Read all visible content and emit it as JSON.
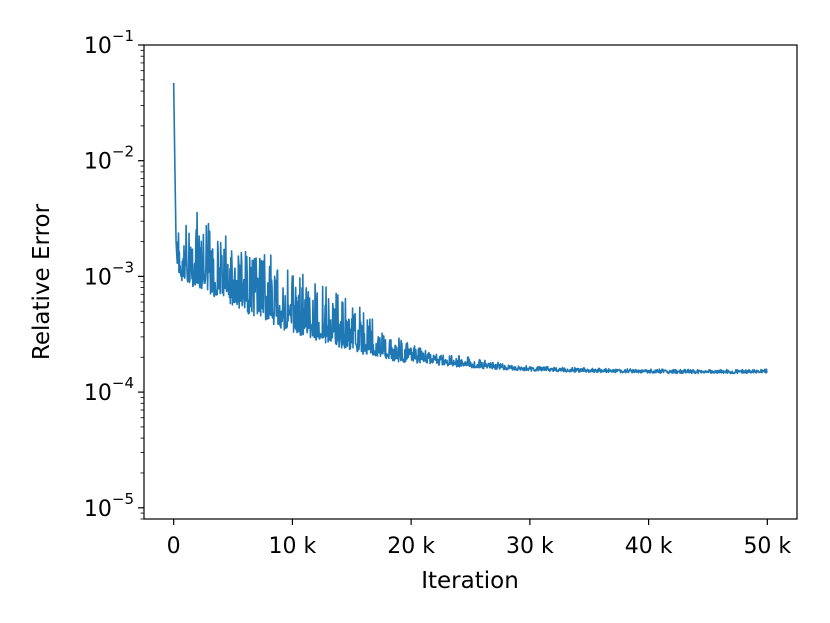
{
  "chart_data": {
    "type": "line",
    "xlabel": "Iteration",
    "ylabel": "Relative Error",
    "xlim": [
      -2500,
      52500
    ],
    "ylim": [
      8e-06,
      0.1
    ],
    "yscale": "log",
    "grid": false,
    "legend": "none",
    "x_ticks": [
      {
        "value": 0,
        "label": "0"
      },
      {
        "value": 10000,
        "label": "10 k"
      },
      {
        "value": 20000,
        "label": "20 k"
      },
      {
        "value": 30000,
        "label": "30 k"
      },
      {
        "value": 40000,
        "label": "40 k"
      },
      {
        "value": 50000,
        "label": "50 k"
      }
    ],
    "y_ticks": [
      {
        "value": 0.1,
        "mantissa": "10",
        "exponent": "−1"
      },
      {
        "value": 0.01,
        "mantissa": "10",
        "exponent": "−2"
      },
      {
        "value": 0.001,
        "mantissa": "10",
        "exponent": "−3"
      },
      {
        "value": 0.0001,
        "mantissa": "10",
        "exponent": "−4"
      },
      {
        "value": 1e-05,
        "mantissa": "10",
        "exponent": "−5"
      }
    ],
    "series": [
      {
        "color": "#1f77b4",
        "x": [
          0,
          100,
          200,
          300,
          500,
          800,
          1000,
          1500,
          2000,
          2500,
          3000,
          4000,
          5000,
          6000,
          7000,
          8000,
          9000,
          10000,
          11000,
          12000,
          13000,
          14000,
          15000,
          16000,
          17000,
          18000,
          19000,
          20000,
          22000,
          24000,
          26000,
          28000,
          30000,
          32000,
          34000,
          36000,
          38000,
          40000,
          42000,
          44000,
          46000,
          48000,
          50000
        ],
        "y": [
          0.047,
          0.009,
          0.002,
          0.0013,
          0.0011,
          0.00105,
          0.001,
          0.00098,
          0.00095,
          0.0009,
          0.00087,
          0.0008,
          0.00072,
          0.00064,
          0.00057,
          0.0005,
          0.00045,
          0.00041,
          0.00037,
          0.00034,
          0.00031,
          0.00029,
          0.00027,
          0.00025,
          0.00023,
          0.00022,
          0.00021,
          0.0002,
          0.000185,
          0.000175,
          0.000168,
          0.000162,
          0.000158,
          0.000156,
          0.000154,
          0.000153,
          0.000152,
          0.000151,
          0.00015,
          0.00015,
          0.00015,
          0.00015,
          0.00015
        ],
        "noise_upper": [
          0.047,
          0.009,
          0.0026,
          0.0024,
          0.0025,
          0.0027,
          0.0028,
          0.0033,
          0.0036,
          0.0032,
          0.003,
          0.0026,
          0.0024,
          0.0021,
          0.0019,
          0.0016,
          0.0013,
          0.0012,
          0.0011,
          0.00095,
          0.00085,
          0.0007,
          0.00062,
          0.00052,
          0.00042,
          0.00033,
          0.0003,
          0.00026,
          0.00022,
          0.00021,
          0.000195,
          0.000175,
          0.000168,
          0.000165,
          0.000163,
          0.00016,
          0.000159,
          0.000158,
          0.000158,
          0.000157,
          0.000157,
          0.000157,
          0.000158
        ],
        "noise_lower": [
          0.047,
          0.009,
          0.0016,
          0.0011,
          0.00095,
          0.0009,
          0.00087,
          0.00082,
          0.0008,
          0.00075,
          0.0007,
          0.00063,
          0.00056,
          0.00049,
          0.00044,
          0.00039,
          0.00035,
          0.00033,
          0.0003,
          0.00028,
          0.00026,
          0.00024,
          0.00023,
          0.00021,
          0.0002,
          0.00019,
          0.00018,
          0.00018,
          0.000172,
          0.000165,
          0.00016,
          0.000156,
          0.000152,
          0.00015,
          0.000149,
          0.000148,
          0.000147,
          0.000146,
          0.000145,
          0.000145,
          0.000145,
          0.000145,
          0.000146
        ]
      }
    ]
  }
}
